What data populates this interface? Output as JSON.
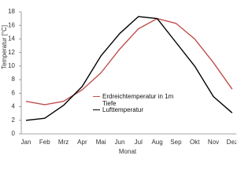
{
  "chart_data": {
    "type": "line",
    "y_label": "Temperatur [°C]",
    "x_label": "Monat",
    "categories": [
      "Jan",
      "Feb",
      "Mrz",
      "Apr",
      "Mai",
      "Jun",
      "Jul",
      "Aug",
      "Sep",
      "Okt",
      "Nov",
      "Dez"
    ],
    "series": [
      {
        "name": "Erdreichtemperatur in 1m Tiefe",
        "color": "#c0504d",
        "values": [
          4.8,
          4.3,
          4.8,
          6.5,
          9.0,
          12.5,
          15.5,
          17.0,
          16.3,
          14.0,
          10.5,
          6.6
        ]
      },
      {
        "name": "Lufttemperatur",
        "color": "#000000",
        "values": [
          2.0,
          2.3,
          4.2,
          7.0,
          11.5,
          14.8,
          17.3,
          17.0,
          13.5,
          10.0,
          5.5,
          3.1
        ]
      }
    ],
    "ylim": [
      0,
      18
    ],
    "yticks": [
      0,
      2,
      4,
      6,
      8,
      10,
      12,
      14,
      16,
      18
    ],
    "grid": false
  }
}
